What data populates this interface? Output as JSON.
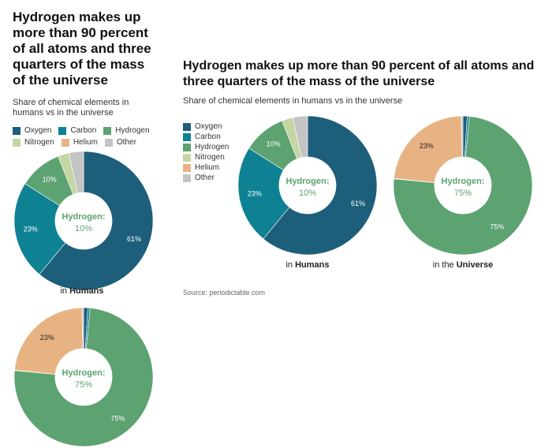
{
  "title": "Hydrogen makes up more than 90 percent of all atoms and three quarters of the mass of the universe",
  "subtitle": "Share of chemical elements in humans vs in the universe",
  "source": "Source: periodictable.com",
  "center_label": "Hydrogen:",
  "colors": {
    "Oxygen": "#1d5f7b",
    "Carbon": "#0e8292",
    "Hydrogen": "#5da271",
    "Nitrogen": "#c4d6a3",
    "Helium": "#e8b383",
    "Other": "#c4c4c4"
  },
  "chart_data": {
    "type": "pie",
    "style": "donut",
    "legend": [
      "Oxygen",
      "Carbon",
      "Hydrogen",
      "Nitrogen",
      "Helium",
      "Other"
    ],
    "charts": [
      {
        "caption_prefix": "in",
        "caption_bold": "Humans",
        "center_value": "10%",
        "slices": [
          {
            "name": "Oxygen",
            "value": 61,
            "label": "61%"
          },
          {
            "name": "Carbon",
            "value": 23,
            "label": "23%"
          },
          {
            "name": "Hydrogen",
            "value": 10,
            "label": "10%"
          },
          {
            "name": "Nitrogen",
            "value": 2.6,
            "label": ""
          },
          {
            "name": "Helium",
            "value": 0,
            "label": ""
          },
          {
            "name": "Other",
            "value": 3.4,
            "label": ""
          }
        ]
      },
      {
        "caption_prefix": "in the",
        "caption_bold": "Universe",
        "center_value": "75%",
        "slices": [
          {
            "name": "Oxygen",
            "value": 1,
            "label": ""
          },
          {
            "name": "Carbon",
            "value": 0.5,
            "label": ""
          },
          {
            "name": "Hydrogen",
            "value": 75,
            "label": "75%"
          },
          {
            "name": "Nitrogen",
            "value": 0.1,
            "label": ""
          },
          {
            "name": "Helium",
            "value": 23,
            "label": "23%"
          },
          {
            "name": "Other",
            "value": 0.4,
            "label": ""
          }
        ]
      }
    ]
  }
}
